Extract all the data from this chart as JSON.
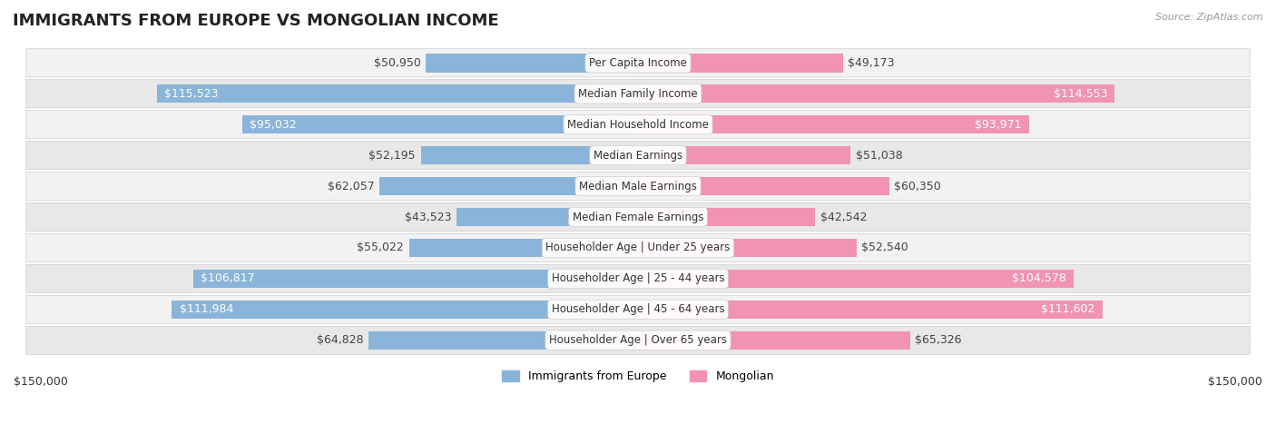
{
  "title": "IMMIGRANTS FROM EUROPE VS MONGOLIAN INCOME",
  "source": "Source: ZipAtlas.com",
  "categories": [
    "Per Capita Income",
    "Median Family Income",
    "Median Household Income",
    "Median Earnings",
    "Median Male Earnings",
    "Median Female Earnings",
    "Householder Age | Under 25 years",
    "Householder Age | 25 - 44 years",
    "Householder Age | 45 - 64 years",
    "Householder Age | Over 65 years"
  ],
  "left_values": [
    50950,
    115523,
    95032,
    52195,
    62057,
    43523,
    55022,
    106817,
    111984,
    64828
  ],
  "right_values": [
    49173,
    114553,
    93971,
    51038,
    60350,
    42542,
    52540,
    104578,
    111602,
    65326
  ],
  "left_labels": [
    "$50,950",
    "$115,523",
    "$95,032",
    "$52,195",
    "$62,057",
    "$43,523",
    "$55,022",
    "$106,817",
    "$111,984",
    "$64,828"
  ],
  "right_labels": [
    "$49,173",
    "$114,553",
    "$93,971",
    "$51,038",
    "$60,350",
    "$42,542",
    "$52,540",
    "$104,578",
    "$111,602",
    "$65,326"
  ],
  "max_value": 150000,
  "left_color": "#8ab4d9",
  "right_color": "#f093b4",
  "row_bg_color_even": "#f2f2f2",
  "row_bg_color_odd": "#e8e8e8",
  "row_border_color": "#cccccc",
  "legend_left": "Immigrants from Europe",
  "legend_right": "Mongolian",
  "title_fontsize": 13,
  "label_fontsize": 9,
  "category_fontsize": 8.5,
  "axis_label": "$150,000",
  "fig_bg_color": "#ffffff",
  "strong_threshold": 75000
}
